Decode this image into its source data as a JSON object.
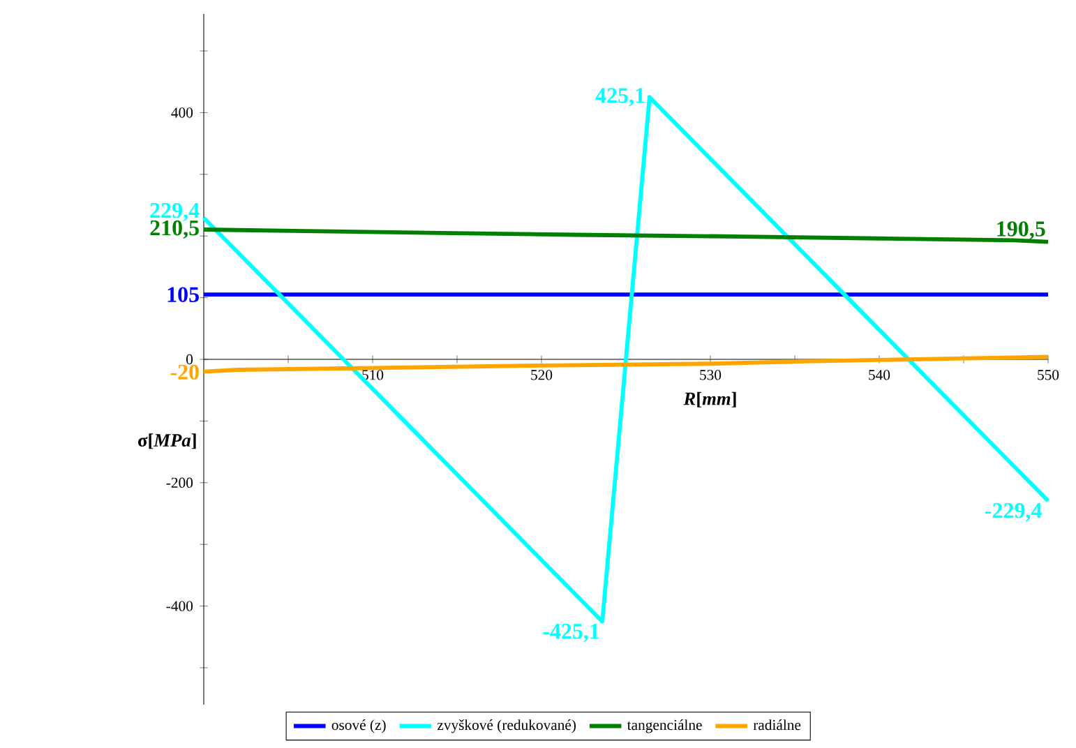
{
  "chart_data": {
    "type": "line",
    "xlabel": "*R*[*mm*]",
    "ylabel": "σ[*MPa*]",
    "xlim": [
      500,
      550
    ],
    "ylim": [
      -560,
      560
    ],
    "xticks": [
      {
        "value": 500,
        "label": null
      },
      {
        "value": 505,
        "label": null
      },
      510,
      {
        "value": 515,
        "label": null
      },
      520,
      {
        "value": 525,
        "label": null
      },
      530,
      {
        "value": 535,
        "label": null
      },
      540,
      {
        "value": 545,
        "label": null
      },
      550
    ],
    "yticks": [
      {
        "value": -500,
        "label": null
      },
      -400,
      {
        "value": -300,
        "label": null
      },
      -200,
      {
        "value": -100,
        "label": null
      },
      0,
      {
        "value": 100,
        "label": null
      },
      {
        "value": 200,
        "label": null
      },
      {
        "value": 300,
        "label": null
      },
      400,
      {
        "value": 500,
        "label": null
      }
    ],
    "legend": "bottom",
    "marker": "none",
    "line_style": "solid",
    "series": [
      {
        "name": "osové (z)",
        "color": "#0000ff",
        "x": [
          500,
          550
        ],
        "values": [
          105,
          105
        ],
        "value_labels": [
          "105",
          null
        ]
      },
      {
        "name": "zvyškové (redukované)",
        "color": "#00ffff",
        "x": [
          500,
          523.6,
          526.4,
          550
        ],
        "values": [
          229.4,
          -425.1,
          425.1,
          -229.4
        ],
        "value_labels": [
          "229,4",
          "-425,1",
          "425,1",
          "-229,4"
        ]
      },
      {
        "name": "tangenciálne",
        "color": "#008000",
        "x": [
          500,
          506,
          514,
          522,
          532,
          540,
          548,
          550
        ],
        "values": [
          210.5,
          208,
          205,
          202,
          199,
          196,
          193,
          190.5
        ],
        "value_labels": [
          "210,5",
          null,
          null,
          null,
          null,
          null,
          null,
          "190,5"
        ]
      },
      {
        "name": "radiálne",
        "color": "#ffa500",
        "x": [
          500,
          502,
          510,
          520,
          530,
          536,
          544,
          550
        ],
        "values": [
          -20,
          -17,
          -14,
          -10,
          -7,
          -3,
          1,
          4
        ],
        "value_labels": [
          "-20",
          null,
          null,
          null,
          null,
          null,
          null,
          null
        ]
      }
    ]
  }
}
